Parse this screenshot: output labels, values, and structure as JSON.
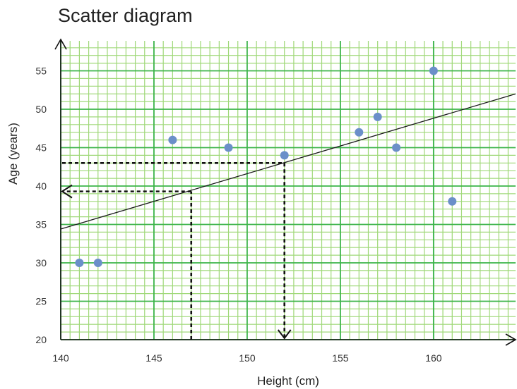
{
  "chart_data": {
    "type": "scatter",
    "title": "Scatter diagram",
    "xlabel": "Height (cm)",
    "ylabel": "Age (years)",
    "xlim": [
      140,
      164.4
    ],
    "ylim": [
      20,
      58.9
    ],
    "x_ticks": [
      "140",
      "145",
      "150",
      "155",
      "160"
    ],
    "y_ticks": [
      "20",
      "25",
      "30",
      "35",
      "40",
      "45",
      "50",
      "55"
    ],
    "grid": true,
    "points": [
      {
        "x": 141,
        "y": 30
      },
      {
        "x": 142,
        "y": 30
      },
      {
        "x": 146,
        "y": 46
      },
      {
        "x": 149,
        "y": 45
      },
      {
        "x": 152,
        "y": 44
      },
      {
        "x": 156,
        "y": 47
      },
      {
        "x": 157,
        "y": 49
      },
      {
        "x": 158,
        "y": 45
      },
      {
        "x": 160,
        "y": 55
      },
      {
        "x": 161,
        "y": 38
      }
    ],
    "trend_line": {
      "x": [
        140,
        164.4
      ],
      "y": [
        34.4,
        52
      ]
    },
    "readings": [
      {
        "x": 152,
        "y": 43
      },
      {
        "x": 147,
        "y": 39.3
      }
    ],
    "colors": {
      "grid_major": "#3cb44a",
      "grid_minor": "#9fd878",
      "point": "#6b8fc9",
      "line": "#1a1a1a"
    }
  }
}
